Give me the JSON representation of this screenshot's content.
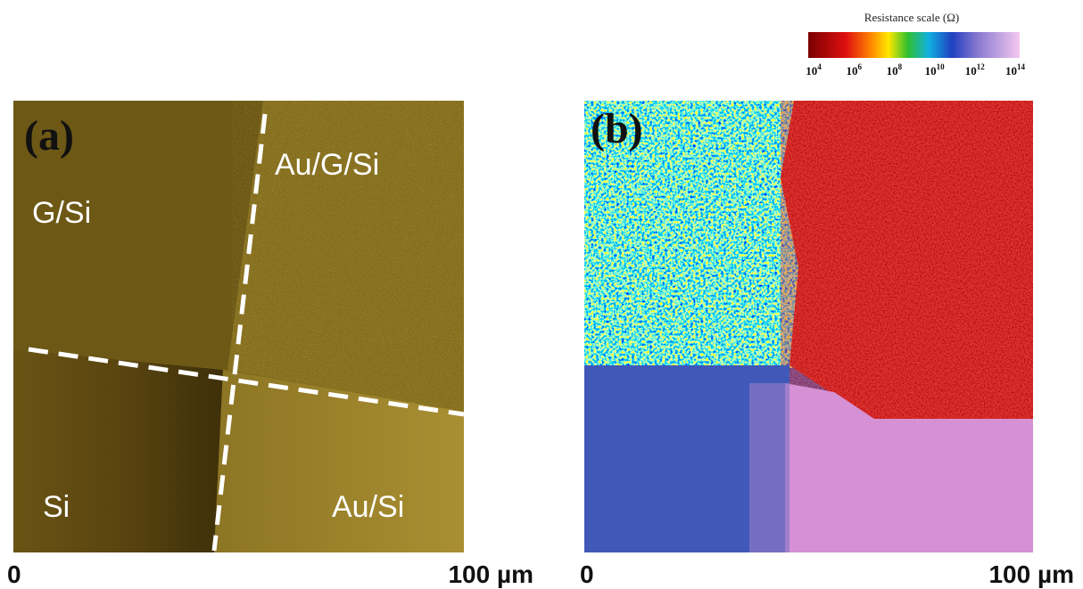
{
  "colorbar": {
    "title": "Resistance scale (Ω)",
    "ticks": [
      {
        "base": "10",
        "exp": "4"
      },
      {
        "base": "10",
        "exp": "6"
      },
      {
        "base": "10",
        "exp": "8"
      },
      {
        "base": "10",
        "exp": "10"
      },
      {
        "base": "10",
        "exp": "12"
      },
      {
        "base": "10",
        "exp": "14"
      }
    ]
  },
  "panel_a": {
    "label": "(a)",
    "regions": [
      "G/Si",
      "Au/G/Si",
      "Si",
      "Au/Si"
    ],
    "axis_start": "0",
    "axis_end": "100 µm"
  },
  "panel_b": {
    "label": "(b)",
    "axis_start": "0",
    "axis_end": "100 µm"
  }
}
